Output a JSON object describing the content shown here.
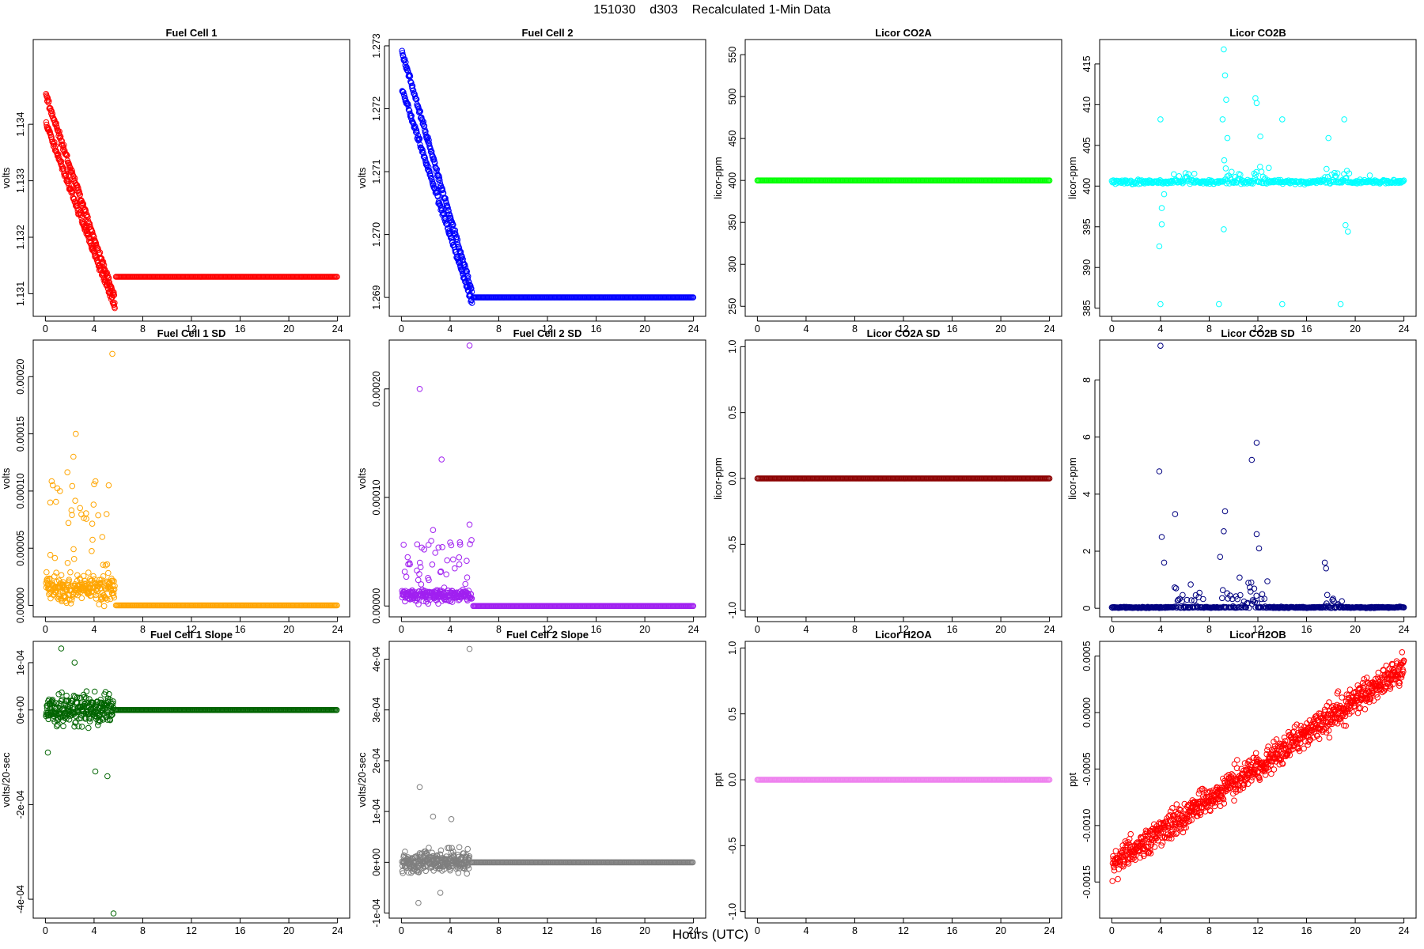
{
  "figure": {
    "title": "151030    d303    Recalculated 1-Min Data",
    "xlabel": "Hours (UTC)"
  },
  "chart_data": [
    {
      "type": "scatter",
      "title": "Fuel Cell 1",
      "xlabel": "",
      "ylabel": "volts",
      "color": "#ff0000",
      "xlim": [
        -1,
        25
      ],
      "ylim": [
        1.1306,
        1.1355
      ],
      "x_ticks": [
        0,
        4,
        8,
        12,
        16,
        20,
        24
      ],
      "y_ticks": [
        1.131,
        1.132,
        1.133,
        1.134
      ],
      "y_tick_labels": [
        "1.131",
        "1.132",
        "1.133",
        "1.134"
      ],
      "series": [
        {
          "pattern": "twin_decline",
          "x_end": 5.7,
          "start": [
            1.1345,
            1.134
          ],
          "end": 1.1309,
          "then_flat": 1.1313,
          "noise": 6e-05
        }
      ]
    },
    {
      "type": "scatter",
      "title": "Fuel Cell 2",
      "xlabel": "",
      "ylabel": "volts",
      "color": "#0000ff",
      "xlim": [
        -1,
        25
      ],
      "ylim": [
        1.2687,
        1.2731
      ],
      "x_ticks": [
        0,
        4,
        8,
        12,
        16,
        20,
        24
      ],
      "y_ticks": [
        1.269,
        1.27,
        1.271,
        1.272,
        1.273
      ],
      "y_tick_labels": [
        "1.269",
        "1.270",
        "1.271",
        "1.272",
        "1.273"
      ],
      "series": [
        {
          "pattern": "twin_decline",
          "x_end": 5.8,
          "start": [
            1.2729,
            1.2723
          ],
          "end": 1.2691,
          "then_flat": 1.269,
          "noise": 5e-05
        }
      ]
    },
    {
      "type": "scatter",
      "title": "Licor CO2A",
      "xlabel": "",
      "ylabel": "licor-ppm",
      "color": "#00ff00",
      "xlim": [
        -1,
        25
      ],
      "ylim": [
        238,
        568
      ],
      "x_ticks": [
        0,
        4,
        8,
        12,
        16,
        20,
        24
      ],
      "y_ticks": [
        250,
        300,
        350,
        400,
        450,
        500,
        550
      ],
      "y_tick_labels": [
        "250",
        "300",
        "350",
        "400",
        "450",
        "500",
        "550"
      ],
      "series": [
        {
          "pattern": "flat",
          "value": 400
        }
      ]
    },
    {
      "type": "scatter",
      "title": "Licor CO2B",
      "xlabel": "",
      "ylabel": "licor-ppm",
      "color": "#00ffff",
      "xlim": [
        -1,
        25
      ],
      "ylim": [
        384,
        418
      ],
      "x_ticks": [
        0,
        4,
        8,
        12,
        16,
        20,
        24
      ],
      "y_ticks": [
        385,
        390,
        395,
        400,
        405,
        410,
        415
      ],
      "y_tick_labels": [
        "385",
        "390",
        "395",
        "400",
        "405",
        "410",
        "415"
      ],
      "series": [
        {
          "pattern": "base_spikes",
          "base": 400.5,
          "noise": 0.25,
          "bursts": [
            [
              5,
              7,
              1.2
            ],
            [
              9,
              11,
              2
            ],
            [
              11.5,
              13,
              2
            ],
            [
              17.5,
              19.5,
              1.5
            ]
          ],
          "spikes": [
            [
              4.0,
              408.2
            ],
            [
              4.0,
              385.5
            ],
            [
              4.1,
              395.3
            ],
            [
              4.1,
              397.3
            ],
            [
              3.9,
              392.6
            ],
            [
              4.3,
              399
            ],
            [
              8.8,
              385.5
            ],
            [
              9.2,
              416.8
            ],
            [
              9.3,
              413.6
            ],
            [
              9.1,
              408.2
            ],
            [
              9.2,
              394.7
            ],
            [
              9.4,
              410.6
            ],
            [
              9.5,
              405.9
            ],
            [
              11.8,
              410.8
            ],
            [
              11.9,
              410.2
            ],
            [
              12.2,
              406.1
            ],
            [
              14.0,
              385.5
            ],
            [
              14.0,
              408.2
            ],
            [
              17.8,
              405.9
            ],
            [
              18.8,
              385.5
            ],
            [
              19.1,
              408.2
            ],
            [
              19.2,
              395.2
            ],
            [
              19.4,
              394.4
            ],
            [
              21.2,
              401.3
            ]
          ]
        }
      ]
    },
    {
      "type": "scatter",
      "title": "Fuel Cell 1 SD",
      "xlabel": "",
      "ylabel": "volts",
      "color": "#ffa500",
      "xlim": [
        -1,
        25
      ],
      "ylim": [
        -1e-05,
        0.000232
      ],
      "x_ticks": [
        0,
        4,
        8,
        12,
        16,
        20,
        24
      ],
      "y_ticks": [
        0,
        5e-05,
        0.0001,
        0.00015,
        0.0002
      ],
      "y_tick_labels": [
        "0.00000",
        "0.00005",
        "0.00010",
        "0.00015",
        "0.00020"
      ],
      "series": [
        {
          "pattern": "noisy_then_zero",
          "x_end": 5.7,
          "center": 1.5e-05,
          "spread": 2e-05,
          "tail": 6e-05,
          "spikes": [
            [
              5.5,
              0.00022
            ],
            [
              2.5,
              0.00015
            ],
            [
              2.3,
              0.00013
            ],
            [
              5.2,
              0.000105
            ],
            [
              1.2,
              0.0001
            ],
            [
              0.4,
              9e-05
            ]
          ]
        }
      ]
    },
    {
      "type": "scatter",
      "title": "Fuel Cell 2 SD",
      "xlabel": "",
      "ylabel": "volts",
      "color": "#a020f0",
      "xlim": [
        -1,
        25
      ],
      "ylim": [
        -1e-05,
        0.000245
      ],
      "x_ticks": [
        0,
        4,
        8,
        12,
        16,
        20,
        24
      ],
      "y_ticks": [
        0,
        0.0001,
        0.0002
      ],
      "y_tick_labels": [
        "0.00000",
        "0.00010",
        "0.00020"
      ],
      "series": [
        {
          "pattern": "noisy_then_zero",
          "x_end": 5.8,
          "center": 1e-05,
          "spread": 1e-05,
          "tail": 3e-05,
          "spikes": [
            [
              5.6,
              0.00024
            ],
            [
              1.5,
              0.0002
            ],
            [
              3.3,
              0.000135
            ],
            [
              5.6,
              7.5e-05
            ],
            [
              2.6,
              7e-05
            ]
          ]
        }
      ]
    },
    {
      "type": "scatter",
      "title": "Licor CO2A SD",
      "xlabel": "",
      "ylabel": "licor-ppm",
      "color": "#8b0000",
      "xlim": [
        -1,
        25
      ],
      "ylim": [
        -1.05,
        1.05
      ],
      "x_ticks": [
        0,
        4,
        8,
        12,
        16,
        20,
        24
      ],
      "y_ticks": [
        -1,
        -0.5,
        0,
        0.5,
        1
      ],
      "y_tick_labels": [
        "-1.0",
        "-0.5",
        "0.0",
        "0.5",
        "1.0"
      ],
      "series": [
        {
          "pattern": "flat",
          "value": 0
        }
      ]
    },
    {
      "type": "scatter",
      "title": "Licor CO2B SD",
      "xlabel": "",
      "ylabel": "licor-ppm",
      "color": "#000080",
      "xlim": [
        -1,
        25
      ],
      "ylim": [
        -0.3,
        9.4
      ],
      "x_ticks": [
        0,
        4,
        8,
        12,
        16,
        20,
        24
      ],
      "y_ticks": [
        0,
        2,
        4,
        6,
        8
      ],
      "y_tick_labels": [
        "0",
        "2",
        "4",
        "6",
        "8"
      ],
      "series": [
        {
          "pattern": "base_spikes",
          "base": 0.03,
          "noise": 0.02,
          "bursts": [
            [
              5,
              7.5,
              0.6
            ],
            [
              9,
              13,
              0.9
            ],
            [
              17.5,
              19,
              0.5
            ]
          ],
          "spikes": [
            [
              4.0,
              9.2
            ],
            [
              3.9,
              4.8
            ],
            [
              4.1,
              2.5
            ],
            [
              4.3,
              1.6
            ],
            [
              5.2,
              3.3
            ],
            [
              9.3,
              3.4
            ],
            [
              9.2,
              2.7
            ],
            [
              8.9,
              1.8
            ],
            [
              11.5,
              5.2
            ],
            [
              11.9,
              5.8
            ],
            [
              11.9,
              2.6
            ],
            [
              12.1,
              2.1
            ],
            [
              17.5,
              1.6
            ],
            [
              17.6,
              1.4
            ]
          ]
        }
      ]
    },
    {
      "type": "scatter",
      "title": "Fuel Cell 1 Slope",
      "xlabel": "",
      "ylabel": "volts/20-sec",
      "color": "#006400",
      "xlim": [
        -1,
        25
      ],
      "ylim": [
        -0.00044,
        0.000145
      ],
      "x_ticks": [
        0,
        4,
        8,
        12,
        16,
        20,
        24
      ],
      "y_ticks": [
        -0.0004,
        -0.0002,
        0,
        0.0001
      ],
      "y_tick_labels": [
        "-4e-04",
        "-2e-04",
        "0e+00",
        "1e-04"
      ],
      "series": [
        {
          "pattern": "noisy_then_zero",
          "x_end": 5.6,
          "center": 0,
          "spread": 5e-05,
          "tail": 4e-05,
          "spikes": [
            [
              1.3,
              0.00013
            ],
            [
              2.4,
              0.0001
            ],
            [
              4.1,
              -0.00013
            ],
            [
              5.1,
              -0.00014
            ],
            [
              5.6,
              -0.00043
            ],
            [
              0.2,
              -9e-05
            ]
          ]
        }
      ]
    },
    {
      "type": "scatter",
      "title": "Fuel Cell 2 Slope",
      "xlabel": "",
      "ylabel": "volts/20-sec",
      "color": "#7f7f7f",
      "xlim": [
        -1,
        25
      ],
      "ylim": [
        -0.00011,
        0.000435
      ],
      "x_ticks": [
        0,
        4,
        8,
        12,
        16,
        20,
        24
      ],
      "y_ticks": [
        -0.0001,
        0,
        0.0001,
        0.0002,
        0.0003,
        0.0004
      ],
      "y_tick_labels": [
        "-1e-04",
        "0e+00",
        "1e-04",
        "2e-04",
        "3e-04",
        "4e-04"
      ],
      "series": [
        {
          "pattern": "noisy_then_zero",
          "x_end": 5.6,
          "center": 0,
          "spread": 3e-05,
          "tail": 3e-05,
          "spikes": [
            [
              5.6,
              0.00042
            ],
            [
              1.5,
              0.000148
            ],
            [
              2.6,
              9e-05
            ],
            [
              4.1,
              8.5e-05
            ],
            [
              1.4,
              -8e-05
            ],
            [
              3.2,
              -6e-05
            ]
          ]
        }
      ]
    },
    {
      "type": "scatter",
      "title": "Licor H2OA",
      "xlabel": "",
      "ylabel": "ppt",
      "color": "#ee82ee",
      "xlim": [
        -1,
        25
      ],
      "ylim": [
        -1.05,
        1.05
      ],
      "x_ticks": [
        0,
        4,
        8,
        12,
        16,
        20,
        24
      ],
      "y_ticks": [
        -1,
        -0.5,
        0,
        0.5,
        1
      ],
      "y_tick_labels": [
        "-1.0",
        "-0.5",
        "0.0",
        "0.5",
        "1.0"
      ],
      "series": [
        {
          "pattern": "flat",
          "value": 0
        }
      ]
    },
    {
      "type": "scatter",
      "title": "Licor H2OB",
      "xlabel": "",
      "ylabel": "ppt",
      "color": "#ff0000",
      "xlim": [
        -1,
        25
      ],
      "ylim": [
        -0.00182,
        0.00063
      ],
      "x_ticks": [
        0,
        4,
        8,
        12,
        16,
        20,
        24
      ],
      "y_ticks": [
        -0.0015,
        -0.001,
        -0.0005,
        0,
        0.0005
      ],
      "y_tick_labels": [
        "-0.0015",
        "-0.0010",
        "-0.0005",
        "0.0000",
        "0.0005"
      ],
      "series": [
        {
          "pattern": "linear_noise",
          "y0": -0.00135,
          "y1": 0.0004,
          "noise": 0.00012
        }
      ]
    }
  ]
}
